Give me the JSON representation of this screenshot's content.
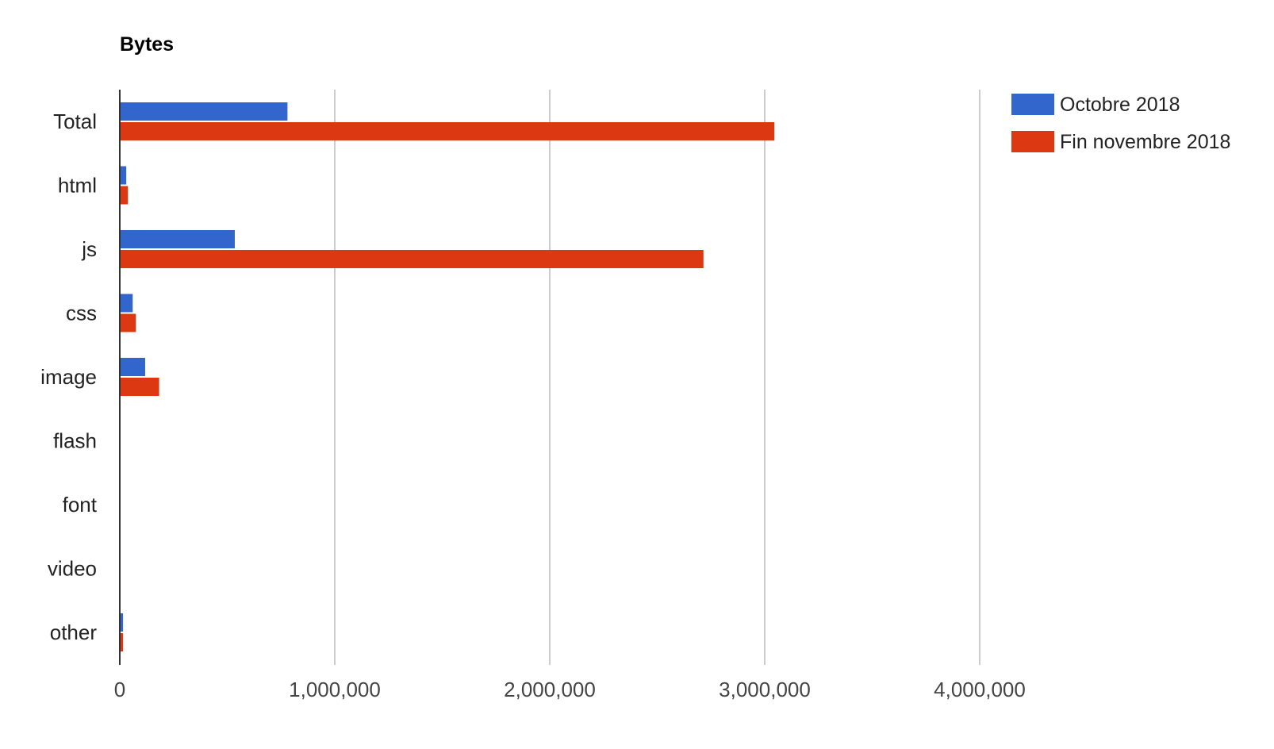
{
  "chart_data": {
    "type": "bar",
    "orientation": "horizontal",
    "title": "Bytes",
    "xlabel": "",
    "ylabel": "",
    "categories": [
      "Total",
      "html",
      "js",
      "css",
      "image",
      "flash",
      "font",
      "video",
      "other"
    ],
    "series": [
      {
        "name": "Octobre 2018",
        "color": "#3366cc",
        "values": [
          780000,
          30000,
          535000,
          60000,
          118000,
          0,
          0,
          0,
          15000
        ]
      },
      {
        "name": "Fin novembre 2018",
        "color": "#dc3912",
        "values": [
          3045000,
          38000,
          2715000,
          75000,
          183000,
          0,
          0,
          0,
          15000
        ]
      }
    ],
    "xlim": [
      0,
      5000000
    ],
    "xticks": [
      0,
      1000000,
      2000000,
      3000000,
      4000000
    ],
    "xtick_labels": [
      "0",
      "1,000,000",
      "2,000,000",
      "3,000,000",
      "4,000,000"
    ],
    "grid": true,
    "legend_position": "right"
  }
}
